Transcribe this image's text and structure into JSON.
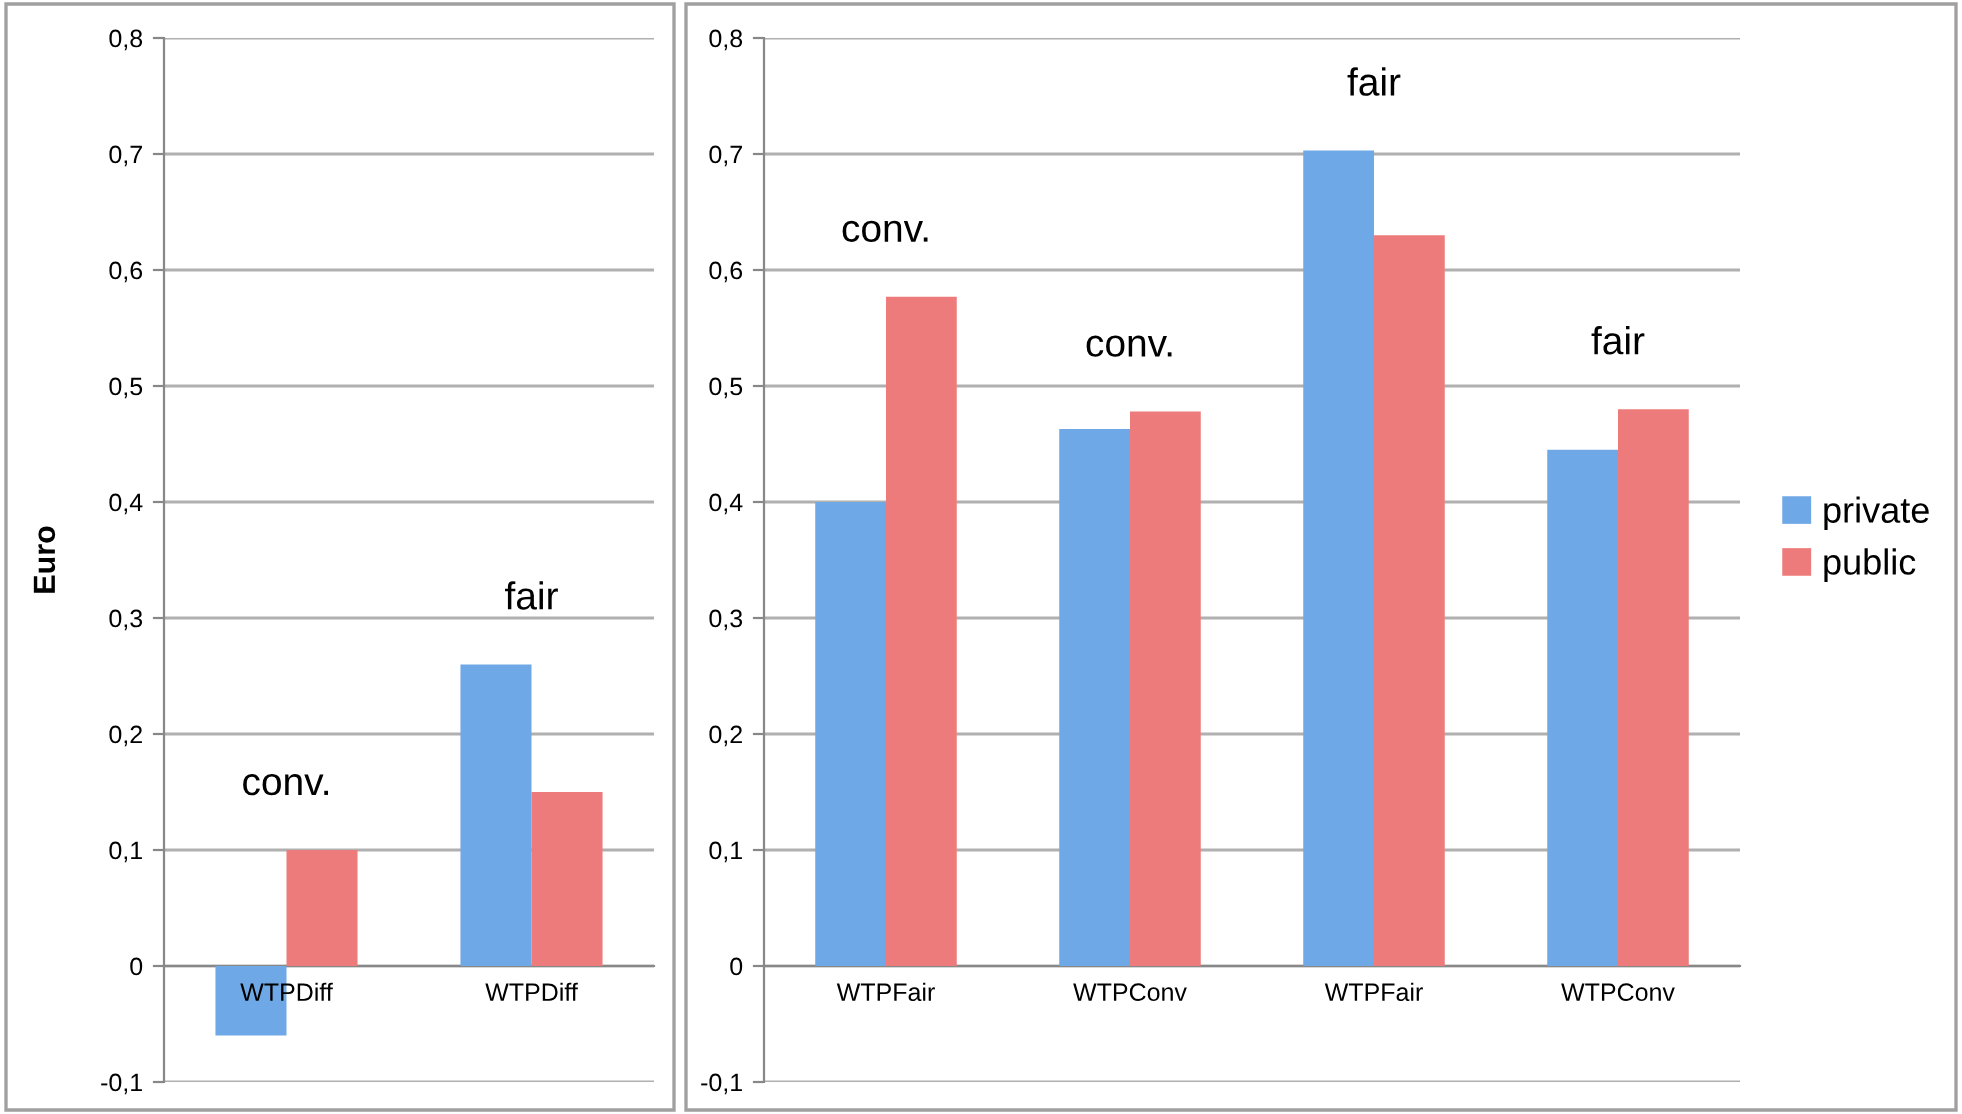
{
  "chart_data": [
    {
      "type": "bar",
      "ylabel": "Euro",
      "categories": [
        "WTPDiff",
        "WTPDiff"
      ],
      "series": [
        {
          "color": "#6fa8e6",
          "values": [
            -0.06,
            0.26
          ]
        },
        {
          "color": "#ee7b7b",
          "values": [
            0.1,
            0.15
          ]
        }
      ],
      "annotations": [
        "conv.",
        "fair"
      ],
      "ylim": [
        -0.1,
        0.8
      ],
      "yticks": [
        {
          "value": -0.1,
          "label": "-0,1"
        },
        0,
        {
          "value": 0.1,
          "label": "0,1"
        },
        {
          "value": 0.2,
          "label": "0,2"
        },
        {
          "value": 0.3,
          "label": "0,3"
        },
        {
          "value": 0.4,
          "label": "0,4"
        },
        {
          "value": 0.5,
          "label": "0,5"
        },
        {
          "value": 0.6,
          "label": "0,6"
        },
        {
          "value": 0.7,
          "label": "0,7"
        },
        {
          "value": 0.8,
          "label": "0,8"
        }
      ],
      "grid": "y",
      "legend": false
    },
    {
      "type": "bar",
      "categories": [
        "WTPFair",
        "WTPConv",
        "WTPFair",
        "WTPConv"
      ],
      "series": [
        {
          "name": "private",
          "color": "#6fa8e6",
          "values": [
            0.4,
            0.463,
            0.703,
            0.445
          ]
        },
        {
          "name": "public",
          "color": "#ee7b7b",
          "values": [
            0.577,
            0.478,
            0.63,
            0.48
          ]
        }
      ],
      "annotations": [
        "conv.",
        "conv.",
        "fair",
        "fair"
      ],
      "ylim": [
        -0.1,
        0.8
      ],
      "yticks": [
        {
          "value": -0.1,
          "label": "-0,1"
        },
        0,
        {
          "value": 0.1,
          "label": "0,1"
        },
        {
          "value": 0.2,
          "label": "0,2"
        },
        {
          "value": 0.3,
          "label": "0,3"
        },
        {
          "value": 0.4,
          "label": "0,4"
        },
        {
          "value": 0.5,
          "label": "0,5"
        },
        {
          "value": 0.6,
          "label": "0,6"
        },
        {
          "value": 0.7,
          "label": "0,7"
        },
        {
          "value": 0.8,
          "label": "0,8"
        }
      ],
      "grid": "y",
      "legend": "right"
    }
  ]
}
